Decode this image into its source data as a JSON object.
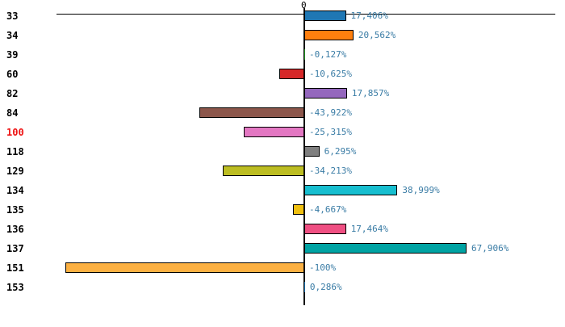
{
  "chart_data": {
    "type": "bar",
    "orientation": "horizontal",
    "zero_tick_label": "0",
    "categories": [
      "33",
      "34",
      "39",
      "60",
      "82",
      "84",
      "100",
      "118",
      "129",
      "134",
      "135",
      "136",
      "137",
      "151",
      "153"
    ],
    "values": [
      17.406,
      20.562,
      -0.127,
      -10.625,
      17.857,
      -43.922,
      -25.315,
      6.295,
      -34.213,
      38.999,
      -4.667,
      17.464,
      67.906,
      -100.0,
      0.286
    ],
    "value_labels": [
      "17,406%",
      "20,562%",
      "-0,127%",
      "-10,625%",
      "17,857%",
      "-43,922%",
      "-25,315%",
      "6,295%",
      "-34,213%",
      "38,999%",
      "-4,667%",
      "17,464%",
      "67,906%",
      "-100%",
      "0,286%"
    ],
    "bar_colors": [
      "#1f77b4",
      "#ff7f0e",
      "#2ca02c",
      "#d62728",
      "#9467bd",
      "#8c564b",
      "#e377c2",
      "#7f7f7f",
      "#bcbd22",
      "#17becf",
      "#f0c010",
      "#ef4f82",
      "#00a3a3",
      "#fbb042",
      "#1f77b4"
    ],
    "xlim": [
      -100,
      110
    ],
    "highlight_category": "100",
    "legend": "none",
    "grid": "off",
    "colors": {
      "value_label": "#3a7ca5",
      "category_label": "#000000",
      "highlight_label": "#ee1111",
      "axis": "#000000",
      "background": "#ffffff",
      "bar_border": "#000000"
    }
  }
}
